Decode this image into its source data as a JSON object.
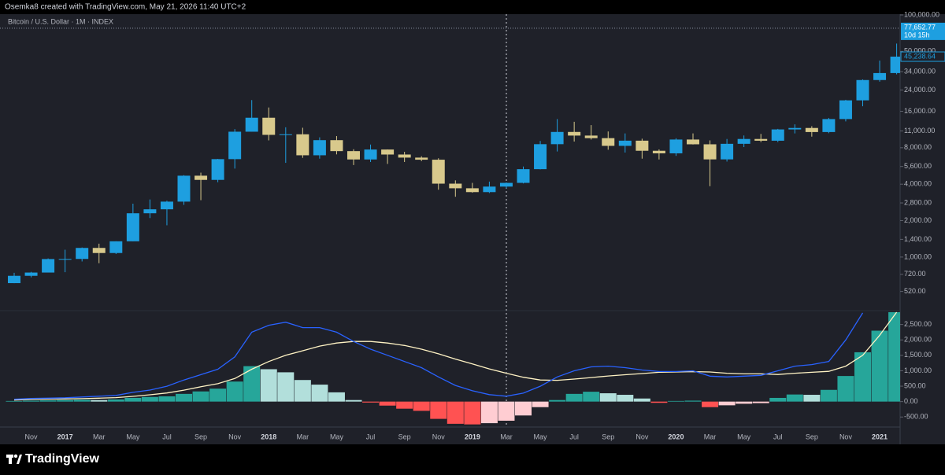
{
  "header": {
    "credit": "Osemka8 created with TradingView.com, May 21, 2026 11:40 UTC+2"
  },
  "footer": {
    "brand": "TradingView"
  },
  "chart_data": [
    {
      "type": "candlestick",
      "title": "Bitcoin / U.S. Dollar · 1M · INDEX",
      "log_scale": true,
      "grid": false,
      "up_color": "#1e9fe0",
      "down_color": "#d8c98c",
      "open": [
        609,
        700,
        745,
        963,
        965,
        1190,
        1080,
        1350,
        2300,
        2480,
        2870,
        4700,
        4340,
        6440,
        10850,
        14150,
        10220,
        10330,
        6930,
        9240,
        7500,
        6400,
        7730,
        7030,
        6630,
        6370,
        4040,
        3700,
        3440,
        3820,
        4100,
        5320,
        8560,
        10800,
        10080,
        9600,
        8290,
        9150,
        7550,
        7190,
        9350,
        8540,
        6410,
        8620,
        9450,
        9140,
        11330,
        11650,
        10780,
        13800,
        19700,
        28990,
        33100
      ],
      "high": [
        742,
        755,
        975,
        1150,
        1200,
        1290,
        1350,
        2760,
        2990,
        2920,
        4750,
        4980,
        6470,
        11400,
        19800,
        17200,
        11800,
        11700,
        9750,
        9990,
        7770,
        8500,
        7750,
        7400,
        6800,
        6550,
        4300,
        4100,
        4200,
        4130,
        5600,
        9100,
        13800,
        13100,
        12300,
        10900,
        10500,
        9500,
        7750,
        9580,
        10500,
        9200,
        9450,
        10100,
        10400,
        11450,
        12480,
        12050,
        14100,
        19900,
        29300,
        41950,
        58000
      ],
      "low": [
        608,
        680,
        750,
        750,
        920,
        890,
        1060,
        1350,
        2100,
        1830,
        2700,
        2950,
        4150,
        5380,
        10850,
        9200,
        6000,
        6600,
        6500,
        7050,
        5750,
        6100,
        5880,
        6100,
        6200,
        3600,
        3150,
        3400,
        3380,
        3700,
        4060,
        5300,
        7450,
        9000,
        9350,
        7700,
        7300,
        6500,
        6400,
        6850,
        8500,
        3850,
        6150,
        8100,
        8900,
        8900,
        10500,
        9880,
        10550,
        13200,
        17600,
        28100,
        32300
      ],
      "close": [
        700,
        745,
        963,
        965,
        1190,
        1080,
        1350,
        2300,
        2480,
        2870,
        4700,
        4340,
        6440,
        10850,
        14150,
        10220,
        10330,
        6930,
        9240,
        7500,
        6400,
        7730,
        7030,
        6630,
        6370,
        4040,
        3700,
        3440,
        3820,
        4100,
        5320,
        8560,
        10800,
        10080,
        9600,
        8290,
        9150,
        7550,
        7190,
        9350,
        8540,
        6410,
        8620,
        9450,
        9140,
        11330,
        11650,
        10780,
        13800,
        19700,
        28990,
        33100,
        45238.64
      ],
      "last_price": {
        "value": 77652.77,
        "label": "77,652.77"
      },
      "countdown": "10d 15h",
      "current_close": {
        "value": 45238.64,
        "label": "45,238.64"
      },
      "ylim": [
        361,
        111000
      ],
      "yticks": [
        {
          "value": 520,
          "label": "520.00"
        },
        {
          "value": 720,
          "label": "720.00"
        },
        {
          "value": 1000,
          "label": "1,000.00"
        },
        {
          "value": 1400,
          "label": "1,400.00"
        },
        {
          "value": 2000,
          "label": "2,000.00"
        },
        {
          "value": 2800,
          "label": "2,800.00"
        },
        {
          "value": 4000,
          "label": "4,000.00"
        },
        {
          "value": 5600,
          "label": "5,600.00"
        },
        {
          "value": 8000,
          "label": "8,000.00"
        },
        {
          "value": 11000,
          "label": "11,000.00"
        },
        {
          "value": 16000,
          "label": "16,000.00"
        },
        {
          "value": 24000,
          "label": "24,000.00"
        },
        {
          "value": 34000,
          "label": "34,000.00"
        },
        {
          "value": 50000,
          "label": "50,000.00"
        },
        {
          "value": 100000,
          "label": "100,000.00"
        }
      ]
    },
    {
      "type": "macd",
      "grid": false,
      "categories": [
        null,
        "Nov",
        null,
        "2017",
        null,
        "Mar",
        null,
        "May",
        null,
        "Jul",
        null,
        "Sep",
        null,
        "Nov",
        null,
        "2018",
        null,
        "Mar",
        null,
        "May",
        null,
        "Jul",
        null,
        "Sep",
        null,
        "Nov",
        null,
        "2019",
        null,
        "Mar",
        null,
        "May",
        null,
        "Jul",
        null,
        "Sep",
        null,
        "Nov",
        null,
        "2020",
        null,
        "Mar",
        null,
        "May",
        null,
        "Jul",
        null,
        "Sep",
        null,
        "Nov",
        null,
        "2021",
        null
      ],
      "histogram": {
        "colors": {
          "pos_rising": "#26a69a",
          "pos_falling": "#b2dfdb",
          "neg_falling": "#ff5252",
          "neg_rising": "#ffcdd2"
        },
        "values": [
          20,
          30,
          40,
          50,
          60,
          50,
          70,
          120,
          150,
          170,
          250,
          330,
          420,
          650,
          1150,
          1050,
          950,
          700,
          550,
          300,
          50,
          -30,
          -130,
          -230,
          -300,
          -560,
          -720,
          -740,
          -700,
          -620,
          -450,
          -180,
          50,
          250,
          320,
          270,
          220,
          100,
          -40,
          20,
          30,
          -180,
          -120,
          -70,
          -50,
          120,
          230,
          220,
          380,
          830,
          1600,
          2300,
          2900
        ]
      },
      "macd": {
        "color": "#2962ff",
        "values": [
          75,
          100,
          110,
          125,
          150,
          175,
          200,
          300,
          375,
          500,
          700,
          875,
          1050,
          1450,
          2250,
          2475,
          2575,
          2400,
          2400,
          2250,
          1950,
          1700,
          1500,
          1300,
          1100,
          800,
          525,
          350,
          225,
          175,
          275,
          500,
          800,
          1000,
          1125,
          1150,
          1100,
          1025,
          975,
          975,
          1000,
          825,
          800,
          825,
          850,
          1000,
          1150,
          1200,
          1300,
          2000,
          2875,
          null,
          null
        ]
      },
      "signal": {
        "color": "#fff3c4",
        "values": [
          50,
          70,
          80,
          85,
          95,
          110,
          130,
          170,
          220,
          280,
          370,
          480,
          580,
          750,
          1050,
          1300,
          1500,
          1650,
          1800,
          1900,
          1950,
          1950,
          1900,
          1820,
          1700,
          1550,
          1380,
          1220,
          1060,
          920,
          790,
          700,
          690,
          730,
          780,
          830,
          870,
          910,
          950,
          960,
          970,
          960,
          920,
          900,
          900,
          880,
          920,
          950,
          980,
          1150,
          1500,
          2150,
          2900
        ]
      },
      "ylim": [
        -825,
        2950
      ],
      "yticks": [
        {
          "value": -500,
          "label": "-500.00"
        },
        {
          "value": 0,
          "label": "0.00"
        },
        {
          "value": 500,
          "label": "500.00"
        },
        {
          "value": 1000,
          "label": "1,000.00"
        },
        {
          "value": 1500,
          "label": "1,500.00"
        },
        {
          "value": 2000,
          "label": "2,000.00"
        },
        {
          "value": 2500,
          "label": "2,500.00"
        }
      ]
    }
  ]
}
